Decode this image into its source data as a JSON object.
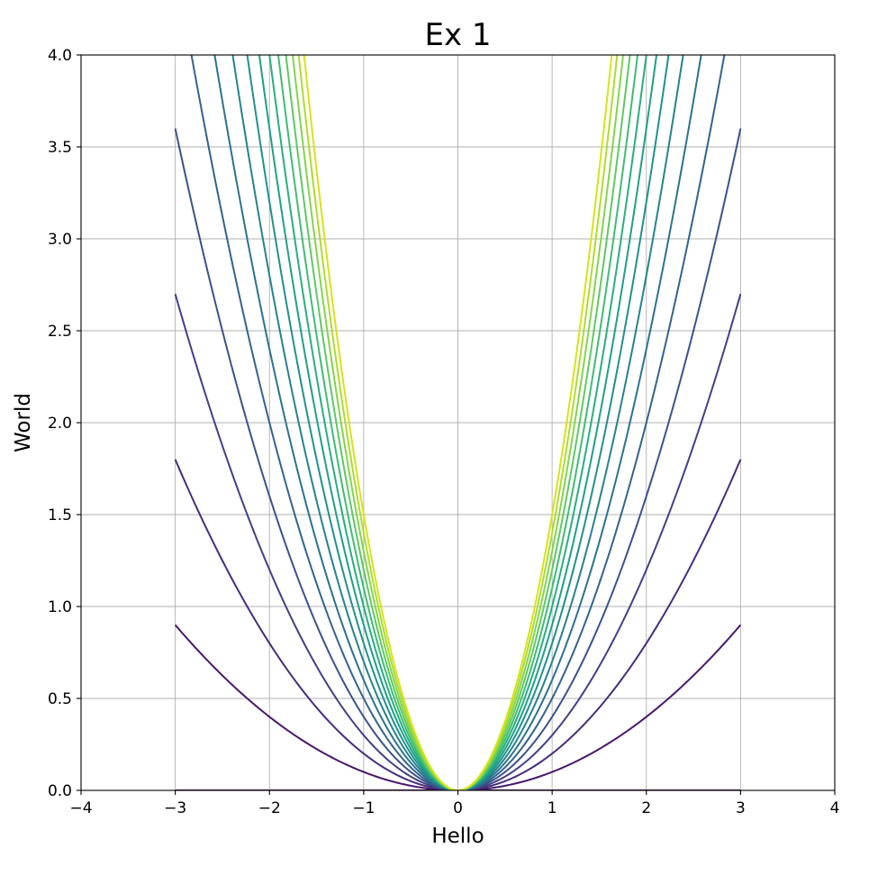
{
  "chart_data": {
    "type": "line",
    "title": "Ex 1",
    "xlabel": "Hello",
    "ylabel": "World",
    "xlim": [
      -4,
      4
    ],
    "ylim": [
      0,
      4
    ],
    "grid": true,
    "x_ticks": [
      -4,
      -3,
      -2,
      -1,
      0,
      1,
      2,
      3,
      4
    ],
    "x_tick_labels": [
      "−4",
      "−3",
      "−2",
      "−1",
      "0",
      "1",
      "2",
      "3",
      "4"
    ],
    "y_ticks": [
      0,
      0.5,
      1,
      1.5,
      2,
      2.5,
      3,
      3.5,
      4
    ],
    "y_tick_labels": [
      "0.0",
      "0.5",
      "1.0",
      "1.5",
      "2.0",
      "2.5",
      "3.0",
      "3.5",
      "4.0"
    ],
    "x_range": [
      -3,
      3
    ],
    "function": "y = a * x^2",
    "series": [
      {
        "a": 0.0,
        "color": "#440154"
      },
      {
        "a": 0.1,
        "color": "#48186a"
      },
      {
        "a": 0.2,
        "color": "#472d7b"
      },
      {
        "a": 0.3,
        "color": "#424086"
      },
      {
        "a": 0.4,
        "color": "#3b528b"
      },
      {
        "a": 0.5,
        "color": "#33638d"
      },
      {
        "a": 0.6,
        "color": "#2c728e"
      },
      {
        "a": 0.7,
        "color": "#26828e"
      },
      {
        "a": 0.8,
        "color": "#21918c"
      },
      {
        "a": 0.9,
        "color": "#1fa088"
      },
      {
        "a": 1.0,
        "color": "#28ae80"
      },
      {
        "a": 1.1,
        "color": "#3fbc73"
      },
      {
        "a": 1.2,
        "color": "#5ec962"
      },
      {
        "a": 1.3,
        "color": "#84d44b"
      },
      {
        "a": 1.4,
        "color": "#addc30"
      },
      {
        "a": 1.5,
        "color": "#d8e219"
      }
    ]
  }
}
